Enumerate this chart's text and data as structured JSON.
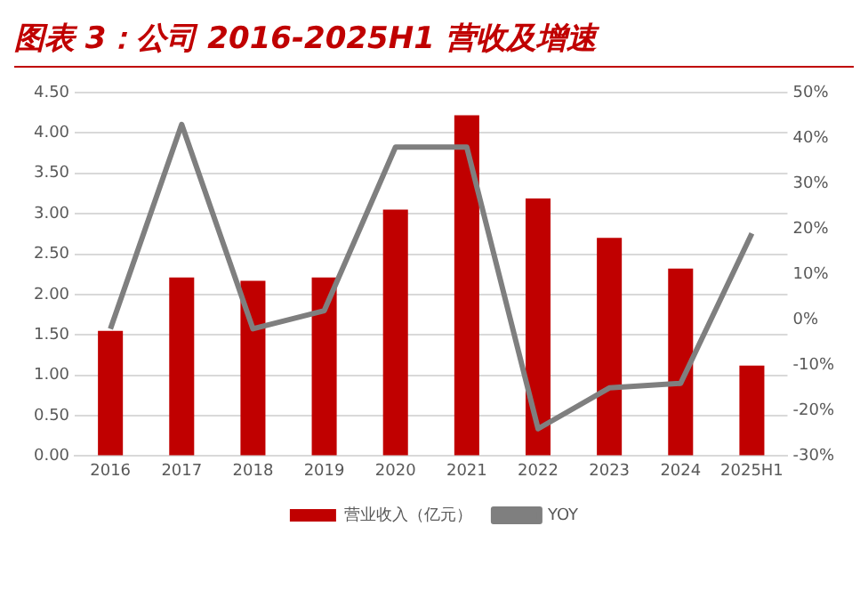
{
  "chart_data": {
    "type": "bar",
    "title": "图表 3：公司 2016-2025H1 营收及增速",
    "categories": [
      "2016",
      "2017",
      "2018",
      "2019",
      "2020",
      "2021",
      "2022",
      "2023",
      "2024",
      "2025H1"
    ],
    "series": [
      {
        "name": "营业收入（亿元）",
        "color": "#c00000",
        "values": [
          1.55,
          2.21,
          2.17,
          2.21,
          3.05,
          4.22,
          3.19,
          2.7,
          2.32,
          1.12
        ]
      },
      {
        "name": "YOY",
        "type": "line",
        "axis": "y2",
        "color": "#7f7f7f",
        "values": [
          -2,
          43,
          -2,
          2,
          38,
          38,
          -24,
          -15,
          -14,
          19
        ]
      }
    ],
    "ylim": [
      0,
      4.5
    ],
    "yticks": [
      {
        "value": 0,
        "label": "0.00"
      },
      {
        "value": 0.5,
        "label": "0.50"
      },
      {
        "value": 1,
        "label": "1.00"
      },
      {
        "value": 1.5,
        "label": "1.50"
      },
      {
        "value": 2,
        "label": "2.00"
      },
      {
        "value": 2.5,
        "label": "2.50"
      },
      {
        "value": 3,
        "label": "3.00"
      },
      {
        "value": 3.5,
        "label": "3.50"
      },
      {
        "value": 4,
        "label": "4.00"
      },
      {
        "value": 4.5,
        "label": "4.50"
      }
    ],
    "y2lim": [
      -30,
      50
    ],
    "y2ticks": [
      {
        "value": -30,
        "label": "-30%"
      },
      {
        "value": -20,
        "label": "-20%"
      },
      {
        "value": -10,
        "label": "-10%"
      },
      {
        "value": 0,
        "label": "0%"
      },
      {
        "value": 10,
        "label": "10%"
      },
      {
        "value": 20,
        "label": "20%"
      },
      {
        "value": 30,
        "label": "30%"
      },
      {
        "value": 40,
        "label": "40%"
      },
      {
        "value": 50,
        "label": "50%"
      }
    ],
    "grid": "y",
    "legend": "bottom",
    "marker": "none"
  }
}
